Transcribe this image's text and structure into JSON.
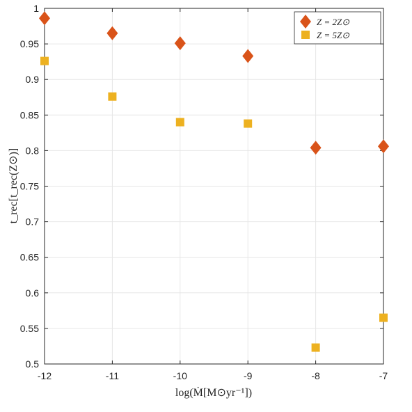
{
  "chart_data": {
    "type": "scatter",
    "xlabel": "log(Ṁ[M⊙yr⁻¹])",
    "ylabel": "t_rec[t_rec(Z⊙)]",
    "xlim": [
      -12,
      -7
    ],
    "ylim": [
      0.5,
      1.0
    ],
    "xticks": [
      "-12",
      "-11",
      "-10",
      "-9",
      "-8",
      "-7"
    ],
    "yticks": [
      "0.5",
      "0.55",
      "0.6",
      "0.65",
      "0.7",
      "0.75",
      "0.8",
      "0.85",
      "0.9",
      "0.95",
      "1"
    ],
    "grid": true,
    "legend_position": "top-right",
    "x": [
      -12,
      -11,
      -10,
      -9,
      -8,
      -7
    ],
    "series": [
      {
        "name": "Z = 2Z⊙",
        "marker": "diamond",
        "color": "#D95319",
        "values": [
          0.986,
          0.965,
          0.951,
          0.933,
          0.804,
          0.806
        ]
      },
      {
        "name": "Z = 5Z⊙",
        "marker": "square",
        "color": "#EDB120",
        "values": [
          0.926,
          0.876,
          0.84,
          0.838,
          0.523,
          0.565
        ]
      }
    ]
  }
}
